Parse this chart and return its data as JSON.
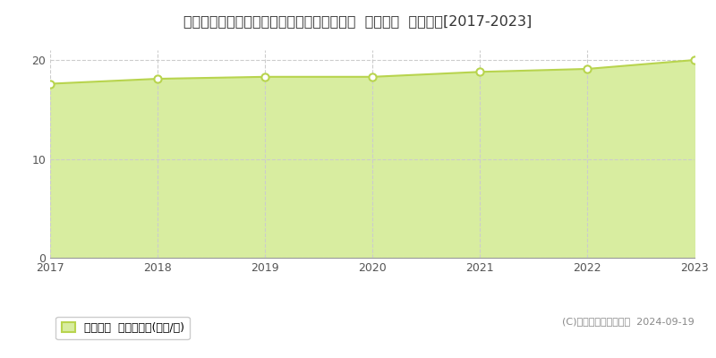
{
  "title": "福島県いわき市中央台高久１丁目１７番１２  公示地価  地価推移[2017-2023]",
  "years": [
    2017,
    2018,
    2019,
    2020,
    2021,
    2022,
    2023
  ],
  "values": [
    17.6,
    18.1,
    18.3,
    18.3,
    18.8,
    19.1,
    20.0
  ],
  "line_color": "#b8d44e",
  "fill_color": "#d8eda0",
  "marker_color": "#ffffff",
  "marker_edge_color": "#b8d44e",
  "bg_color": "#ffffff",
  "plot_bg_color": "#ffffff",
  "grid_color": "#cccccc",
  "ylim": [
    0,
    21
  ],
  "yticks": [
    0,
    10,
    20
  ],
  "legend_label": "公示地価  平均坪単価(万円/坪)",
  "copyright_text": "(C)土地価格ドットコム  2024-09-19",
  "title_fontsize": 11.5,
  "tick_fontsize": 9,
  "legend_fontsize": 9,
  "copyright_fontsize": 8
}
